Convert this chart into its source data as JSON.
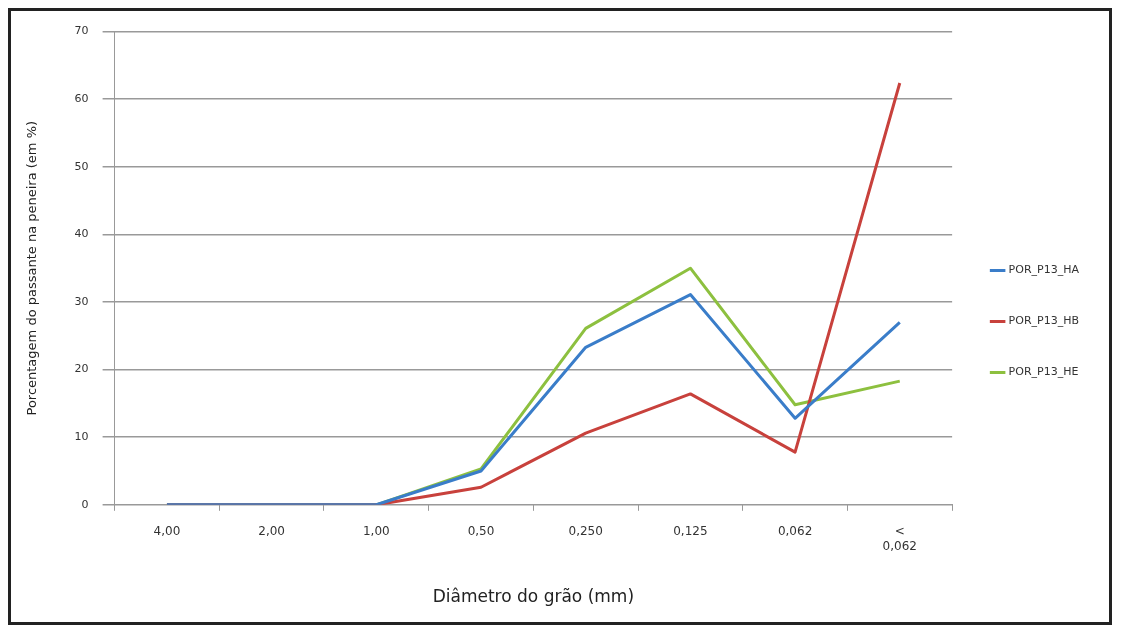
{
  "chart_data": {
    "type": "line",
    "xlabel": "Diâmetro do grão (mm)",
    "ylabel": "Porcentagem do passante na peneira (em %)",
    "categories": [
      "4,00",
      "2,00",
      "1,00",
      "0,50",
      "0,250",
      "0,125",
      "0,062",
      "< 0,062"
    ],
    "series": [
      {
        "name": "POR_P13_HA",
        "color": "#3a7dc9",
        "values": [
          0,
          0,
          0,
          5,
          23.3,
          31.1,
          12.8,
          27
        ]
      },
      {
        "name": "POR_P13_HB",
        "color": "#c8413c",
        "values": [
          0,
          0,
          0,
          2.6,
          10.6,
          16.4,
          7.8,
          62.4
        ]
      },
      {
        "name": "POR_P13_HE",
        "color": "#8dc03f",
        "values": [
          0,
          0,
          0,
          5.3,
          26.1,
          35,
          14.8,
          18.3
        ]
      }
    ],
    "ylim": [
      0,
      70
    ],
    "yticks": [
      0,
      10,
      20,
      30,
      40,
      50,
      60,
      70
    ],
    "grid": "y",
    "legend": "right",
    "marker": "none",
    "line_style": "solid"
  }
}
